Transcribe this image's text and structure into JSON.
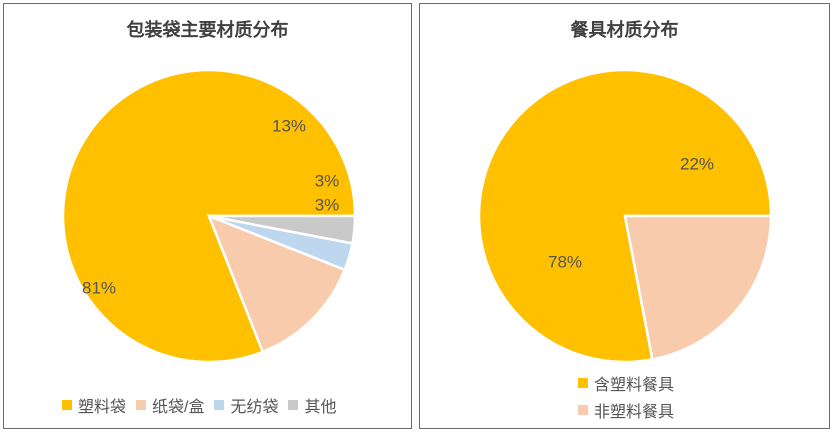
{
  "chart_data": [
    {
      "type": "pie",
      "title": "包装袋主要材质分布",
      "categories": [
        "塑料袋",
        "纸袋/盒",
        "无纺袋",
        "其他"
      ],
      "values": [
        81,
        13,
        3,
        3
      ],
      "labels": [
        "81%",
        "13%",
        "3%",
        "3%"
      ],
      "colors": [
        "#FFC000",
        "#F8CBAD",
        "#BDD7EE",
        "#C9C9C9"
      ],
      "legend_position": "bottom"
    },
    {
      "type": "pie",
      "title": "餐具材质分布",
      "categories": [
        "含塑料餐具",
        "非塑料餐具"
      ],
      "values": [
        78,
        22
      ],
      "labels": [
        "78%",
        "22%"
      ],
      "colors": [
        "#FFC000",
        "#F8CBAD"
      ],
      "legend_position": "bottom"
    }
  ]
}
